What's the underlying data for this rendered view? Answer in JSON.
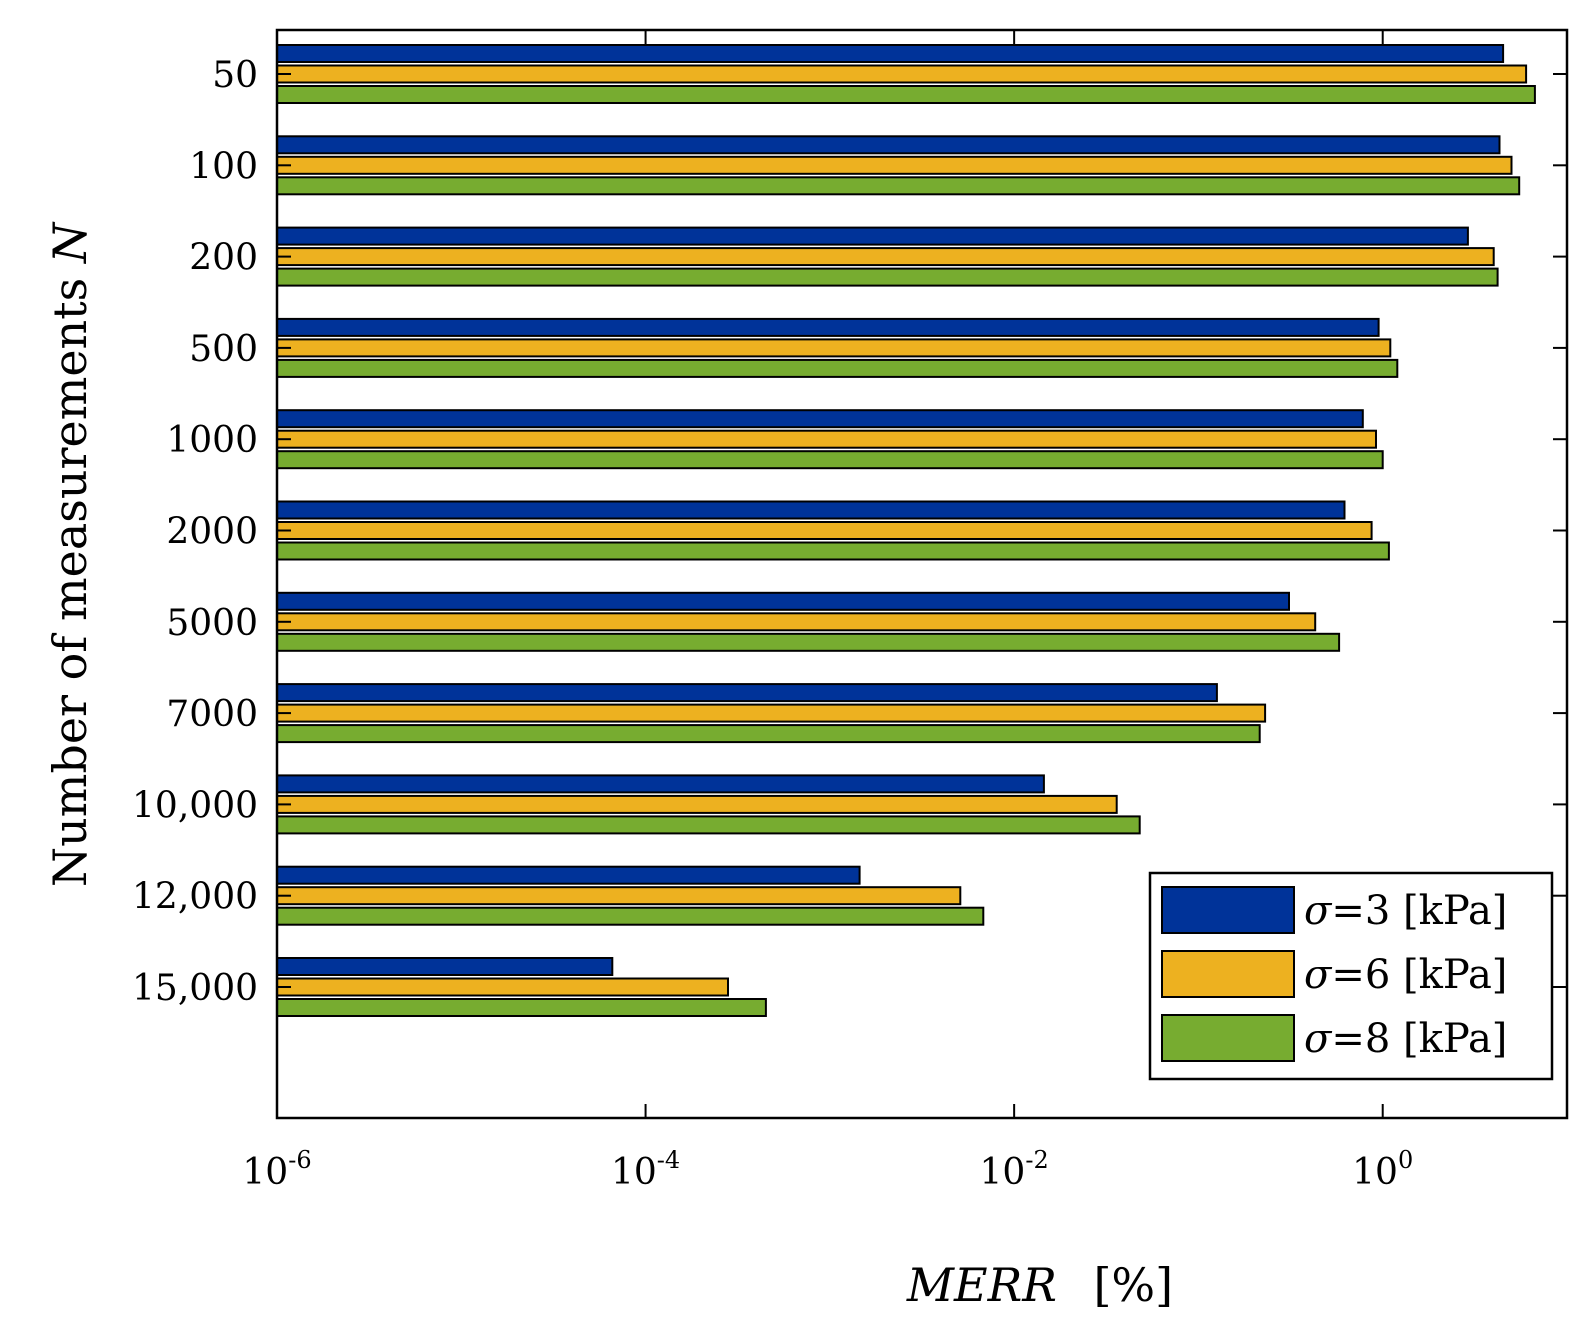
{
  "chart_data": {
    "type": "bar",
    "orientation": "horizontal",
    "x_scale": "log",
    "xlim": [
      1e-06,
      10
    ],
    "x_ticks": [
      {
        "value": 1e-06,
        "base": "10",
        "exp": "-6"
      },
      {
        "value": 0.0001,
        "base": "10",
        "exp": "-4"
      },
      {
        "value": 0.01,
        "base": "10",
        "exp": "-2"
      },
      {
        "value": 1,
        "base": "10",
        "exp": "0"
      }
    ],
    "xlabel": {
      "main": "MERR",
      "unit": "[%]"
    },
    "ylabel": {
      "main": "Number of measurements ",
      "symbol": "N"
    },
    "categories": [
      "50",
      "100",
      "200",
      "500",
      "1000",
      "2000",
      "5000",
      "7000",
      "10,000",
      "12,000",
      "15,000"
    ],
    "series": [
      {
        "name": "σ=3 [kPa]",
        "symbol": "σ",
        "label": "=3 [kPa]",
        "color": "#003399",
        "values": [
          4.5,
          4.3,
          2.9,
          0.95,
          0.78,
          0.62,
          0.31,
          0.126,
          0.0145,
          0.00145,
          6.6e-05
        ]
      },
      {
        "name": "σ=6 [kPa]",
        "symbol": "σ",
        "label": "=6 [kPa]",
        "color": "#EDB120",
        "values": [
          6.0,
          5.0,
          4.0,
          1.1,
          0.92,
          0.87,
          0.43,
          0.23,
          0.036,
          0.0051,
          0.00028
        ]
      },
      {
        "name": "σ=8 [kPa]",
        "symbol": "σ",
        "label": "=8 [kPa]",
        "color": "#77AC30",
        "values": [
          6.7,
          5.5,
          4.2,
          1.2,
          1.0,
          1.08,
          0.58,
          0.215,
          0.048,
          0.0068,
          0.00045
        ]
      }
    ],
    "legend_position": "bottom-right",
    "grid": false
  }
}
